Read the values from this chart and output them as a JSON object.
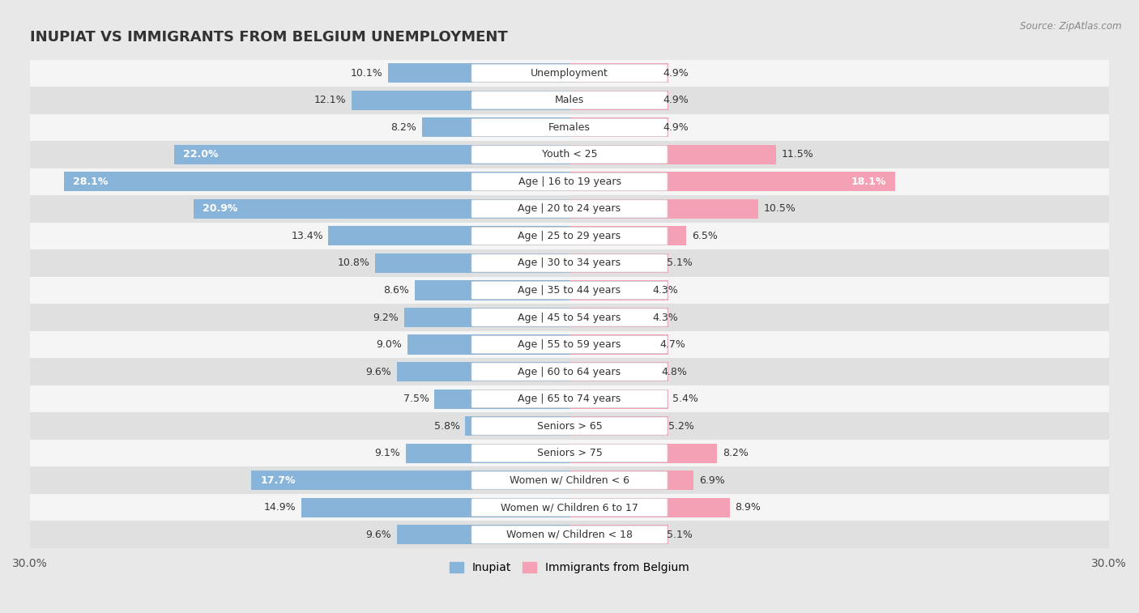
{
  "title": "INUPIAT VS IMMIGRANTS FROM BELGIUM UNEMPLOYMENT",
  "source": "Source: ZipAtlas.com",
  "categories": [
    "Unemployment",
    "Males",
    "Females",
    "Youth < 25",
    "Age | 16 to 19 years",
    "Age | 20 to 24 years",
    "Age | 25 to 29 years",
    "Age | 30 to 34 years",
    "Age | 35 to 44 years",
    "Age | 45 to 54 years",
    "Age | 55 to 59 years",
    "Age | 60 to 64 years",
    "Age | 65 to 74 years",
    "Seniors > 65",
    "Seniors > 75",
    "Women w/ Children < 6",
    "Women w/ Children 6 to 17",
    "Women w/ Children < 18"
  ],
  "inupiat_values": [
    10.1,
    12.1,
    8.2,
    22.0,
    28.1,
    20.9,
    13.4,
    10.8,
    8.6,
    9.2,
    9.0,
    9.6,
    7.5,
    5.8,
    9.1,
    17.7,
    14.9,
    9.6
  ],
  "belgium_values": [
    4.9,
    4.9,
    4.9,
    11.5,
    18.1,
    10.5,
    6.5,
    5.1,
    4.3,
    4.3,
    4.7,
    4.8,
    5.4,
    5.2,
    8.2,
    6.9,
    8.9,
    5.1
  ],
  "inupiat_color": "#89b4d9",
  "belgium_color": "#f4a0b5",
  "background_color": "#e8e8e8",
  "row_color_light": "#f5f5f5",
  "row_color_dark": "#e0e0e0",
  "axis_max": 30.0,
  "label_fontsize": 9.0,
  "title_fontsize": 13,
  "legend_fontsize": 10,
  "value_fontsize": 9.0
}
